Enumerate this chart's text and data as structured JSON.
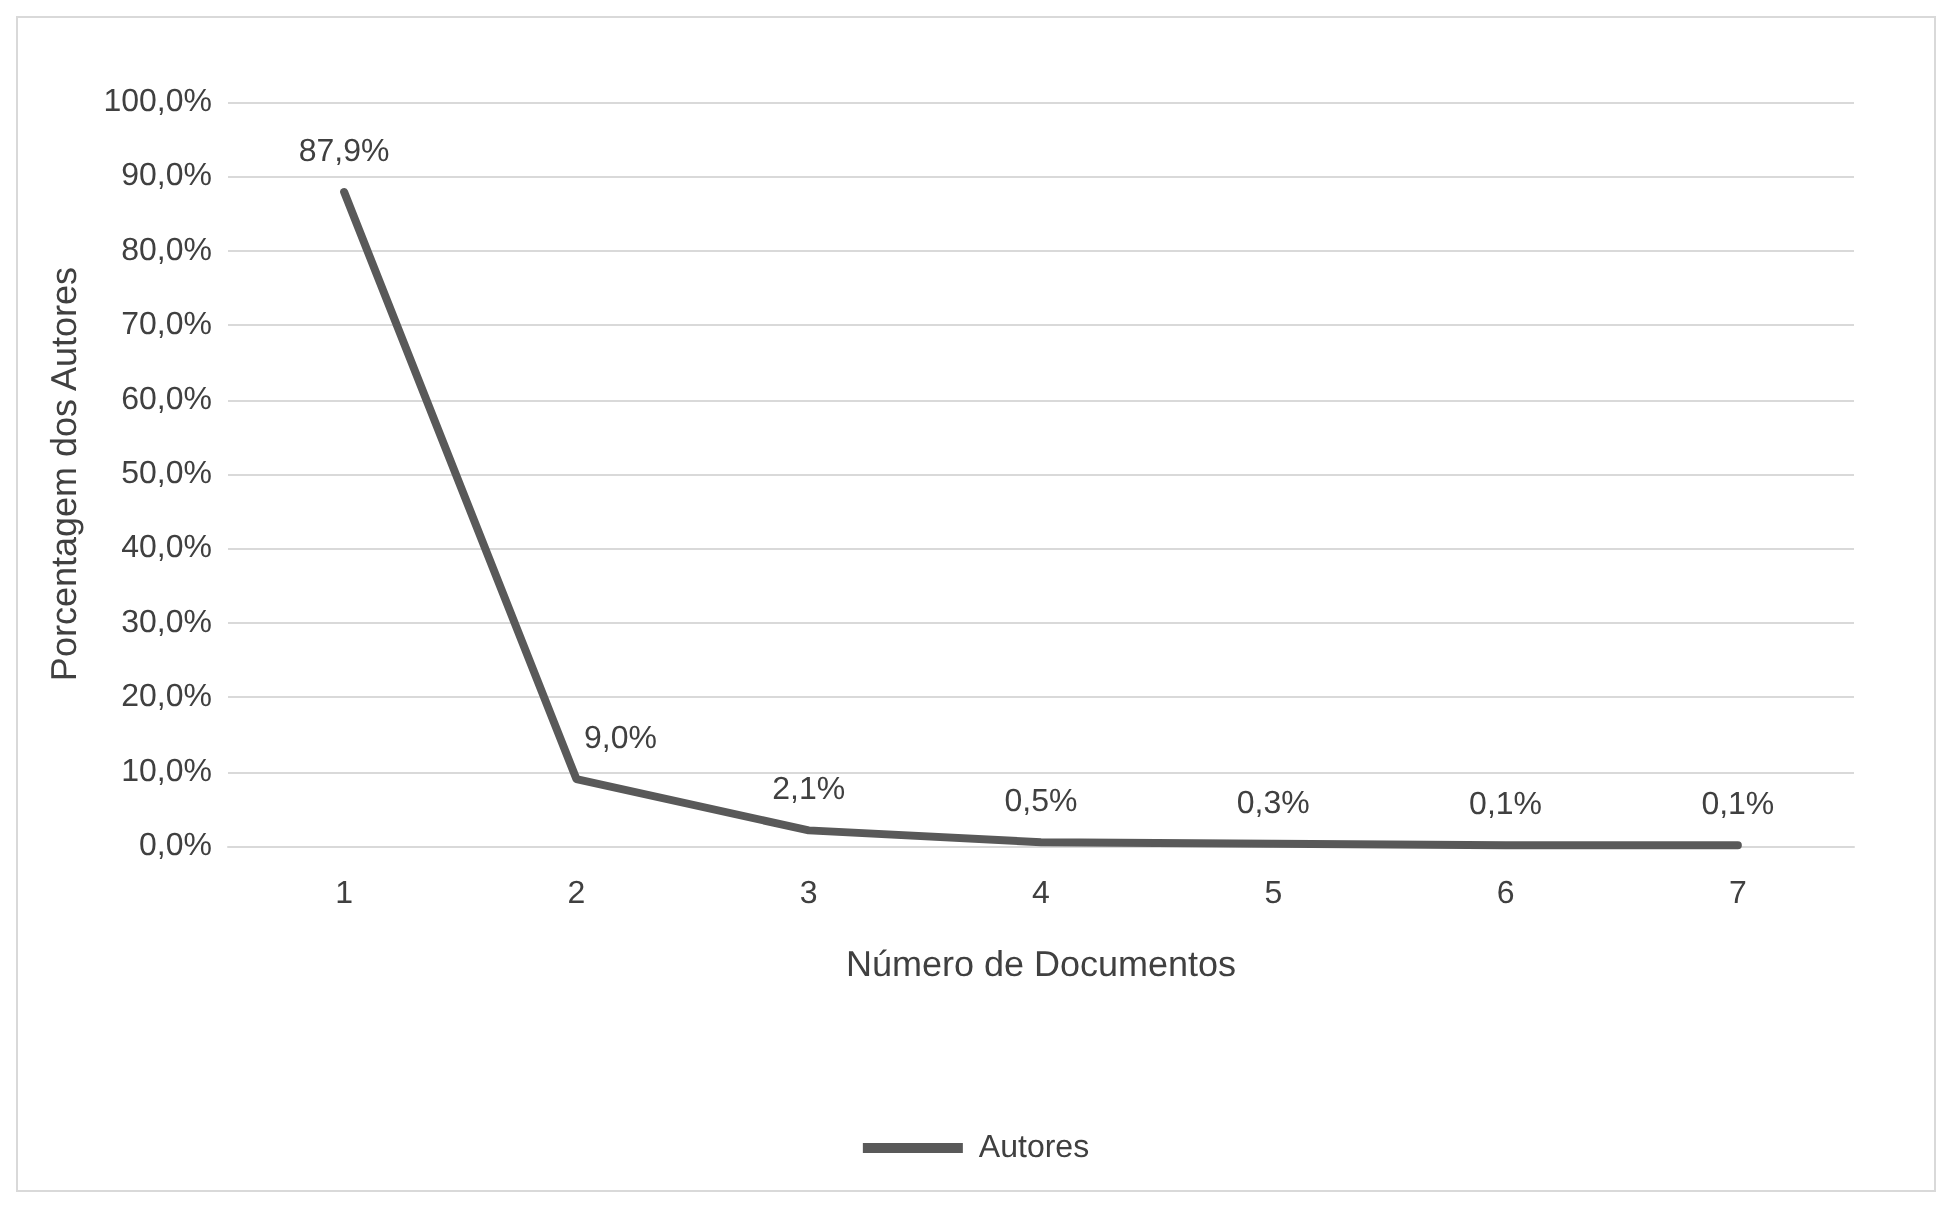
{
  "chart_data": {
    "type": "line",
    "xlabel": "Número de Documentos",
    "ylabel": "Porcentagem dos Autores",
    "categories": [
      "1",
      "2",
      "3",
      "4",
      "5",
      "6",
      "7"
    ],
    "series": [
      {
        "name": "Autores",
        "color": "#595959",
        "values": [
          87.9,
          9.0,
          2.1,
          0.5,
          0.3,
          0.1,
          0.1
        ],
        "value_labels": [
          "87,9%",
          "9,0%",
          "2,1%",
          "0,5%",
          "0,3%",
          "0,1%",
          "0,1%"
        ]
      }
    ],
    "ylim": [
      0,
      100
    ],
    "yticks": [
      {
        "value": 0,
        "label": "0,0%"
      },
      {
        "value": 10,
        "label": "10,0%"
      },
      {
        "value": 20,
        "label": "20,0%"
      },
      {
        "value": 30,
        "label": "30,0%"
      },
      {
        "value": 40,
        "label": "40,0%"
      },
      {
        "value": 50,
        "label": "50,0%"
      },
      {
        "value": 60,
        "label": "60,0%"
      },
      {
        "value": 70,
        "label": "70,0%"
      },
      {
        "value": 80,
        "label": "80,0%"
      },
      {
        "value": 90,
        "label": "90,0%"
      },
      {
        "value": 100,
        "label": "100,0%"
      }
    ],
    "grid": "y",
    "legend": "bottom",
    "marker": "none",
    "line_style": "solid"
  }
}
